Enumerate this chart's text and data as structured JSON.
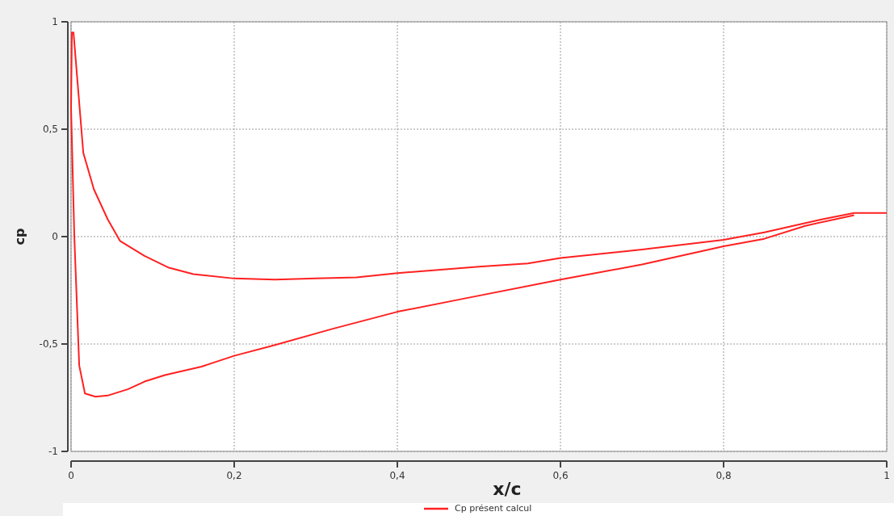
{
  "chart_data": {
    "type": "line",
    "xlabel": "x/c",
    "ylabel": "cp",
    "xlim": [
      0,
      1
    ],
    "ylim": [
      -1,
      1
    ],
    "xticks": [
      0,
      {
        "value": 0.2,
        "label": "0,2"
      },
      {
        "value": 0.4,
        "label": "0,4"
      },
      {
        "value": 0.6,
        "label": "0,6"
      },
      {
        "value": 0.8,
        "label": "0,8"
      },
      1
    ],
    "yticks": [
      -1,
      {
        "value": -0.5,
        "label": "-0,5"
      },
      0,
      {
        "value": 0.5,
        "label": "0,5"
      },
      1
    ],
    "grid": true,
    "legend": "bottom",
    "line_style": "solid",
    "marker": "none",
    "series": [
      {
        "name": "Cp présent calcul",
        "color": "#ff2020",
        "x": [
          1,
          0.96,
          0.92,
          0.85,
          0.8,
          0.7,
          0.6,
          0.56,
          0.5,
          0.4,
          0.35,
          0.3,
          0.25,
          0.2,
          0.15,
          0.12,
          0.09,
          0.06,
          0.045,
          0.028,
          0.015,
          0.003,
          0.001,
          0.0,
          0.004,
          0.01,
          0.017,
          0.03,
          0.045,
          0.07,
          0.09,
          0.115,
          0.16,
          0.2,
          0.25,
          0.32,
          0.4,
          0.48,
          0.6,
          0.7,
          0.8,
          0.85,
          0.9,
          0.96
        ],
        "values": [
          0.11,
          0.11,
          0.08,
          0.02,
          -0.015,
          -0.06,
          -0.1,
          -0.125,
          -0.14,
          -0.17,
          -0.19,
          -0.195,
          -0.2,
          -0.195,
          -0.175,
          -0.145,
          -0.09,
          -0.02,
          0.08,
          0.22,
          0.39,
          0.95,
          0.95,
          0.6,
          0,
          -0.6,
          -0.73,
          -0.745,
          -0.74,
          -0.71,
          -0.675,
          -0.645,
          -0.605,
          -0.555,
          -0.505,
          -0.43,
          -0.35,
          -0.29,
          -0.2,
          -0.13,
          -0.045,
          -0.01,
          0.05,
          0.1
        ]
      }
    ]
  }
}
